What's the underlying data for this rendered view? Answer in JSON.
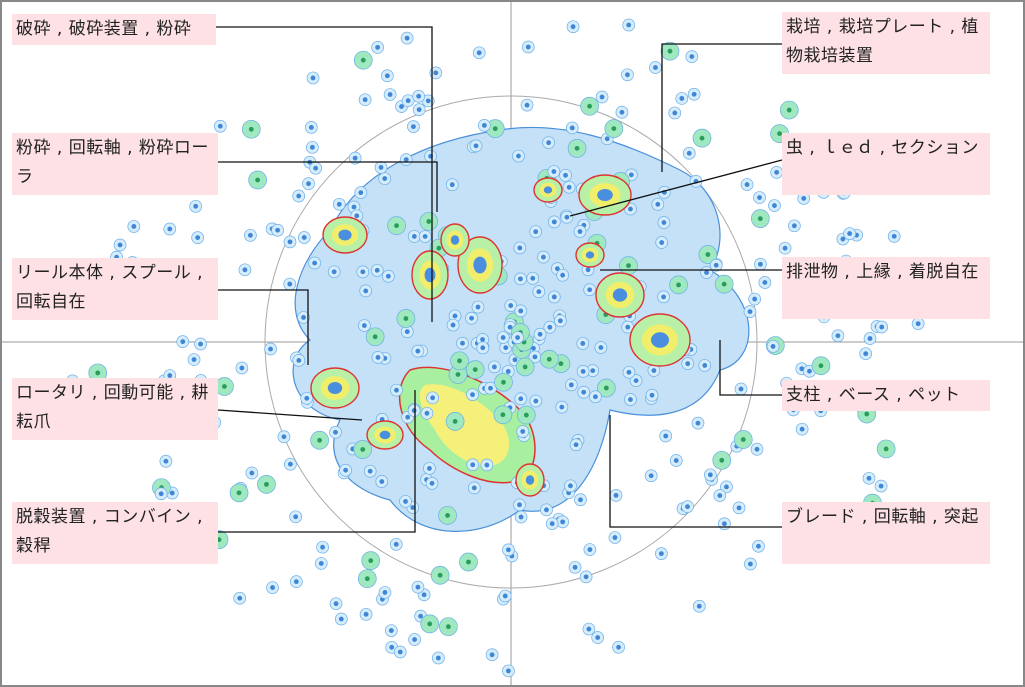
{
  "labels": [
    "破砕 , 破砕装置 , 粉砕",
    "粉砕 , 回転軸 , 粉砕ローラ",
    "リール本体 , スプール , 回転自在",
    "ロータリ , 回動可能 , 耕耘爪",
    "脱穀装置 , コンバイン , 穀稈",
    "栽培 , 栽培プレート , 植物栽培装置",
    "虫 , ｌｅｄ , セクション",
    "排泄物 , 上縁 , 着脱自在",
    "支柱 , ベース , ペット",
    "ブレード , 回転軸 , 突起"
  ]
}
